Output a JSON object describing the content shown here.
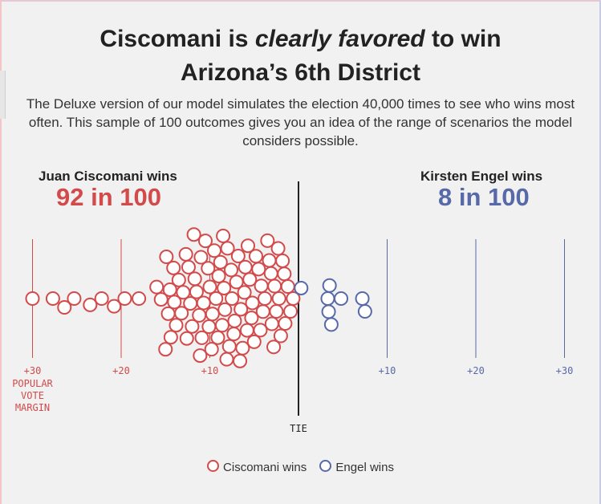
{
  "title_part1": "Ciscomani is ",
  "title_em": "clearly favored",
  "title_part2": " to win",
  "title_line2": "Arizona’s 6th District",
  "subtitle": "The Deluxe version of our model simulates the election 40,000 times to see who wins most often. This sample of 100 outcomes gives you an idea of the range of scenarios the model considers possible.",
  "left_label": "Juan Ciscomani wins",
  "left_count": "92 in 100",
  "right_label": "Kirsten Engel wins",
  "right_count": "8 in 100",
  "colors": {
    "rep": "#d34a4a",
    "dem": "#5869a8",
    "tie": "#222222"
  },
  "legend": {
    "rep": "Ciscomani wins",
    "dem": "Engel wins"
  },
  "chart_data": {
    "type": "scatter",
    "subtype": "beeswarm",
    "x_axis": {
      "ticks_left": [
        "+30",
        "+20",
        "+10"
      ],
      "ticks_right": [
        "+10",
        "+20",
        "+30"
      ],
      "left_axis_label": [
        "POPULAR",
        "VOTE",
        "MARGIN"
      ],
      "center_label": "TIE",
      "range": [
        -30,
        30
      ]
    },
    "series": [
      {
        "name": "Ciscomani wins",
        "count": 92,
        "values": [
          -30,
          -27.7,
          -26.4,
          -25.3,
          -23.5,
          -22.2,
          -20.8,
          -19.6,
          -18,
          -16,
          -15.5,
          -15,
          -14.9,
          -14.7,
          -14.5,
          -14.4,
          -14.1,
          -14,
          -13.8,
          -13.5,
          -13.2,
          -13,
          -12.7,
          -12.6,
          -12.4,
          -12.2,
          -12,
          -11.8,
          -11.7,
          -11.5,
          -11.2,
          -11.1,
          -11,
          -10.9,
          -10.7,
          -10.5,
          -10.2,
          -10.1,
          -10,
          -9.8,
          -9.7,
          -9.5,
          -9.3,
          -9.1,
          -9,
          -8.8,
          -8.6,
          -8.5,
          -8.4,
          -8.3,
          -8.1,
          -8,
          -7.8,
          -7.6,
          -7.5,
          -7.3,
          -7.2,
          -7,
          -6.8,
          -6.6,
          -6.5,
          -6.3,
          -6.1,
          -6,
          -5.8,
          -5.7,
          -5.5,
          -5.3,
          -5.2,
          -5,
          -4.8,
          -4.5,
          -4.3,
          -4.2,
          -4,
          -3.8,
          -3.5,
          -3.3,
          -3.1,
          -3,
          -2.8,
          -2.7,
          -2.5,
          -2.3,
          -2.2,
          -2,
          -1.8,
          -1.6,
          -1.5,
          -1.2,
          -0.9,
          -0.6
        ]
      },
      {
        "name": "Engel wins",
        "count": 8,
        "values": [
          0.3,
          3.3,
          3.4,
          3.5,
          3.7,
          4.8,
          7.2,
          7.5
        ]
      }
    ]
  }
}
